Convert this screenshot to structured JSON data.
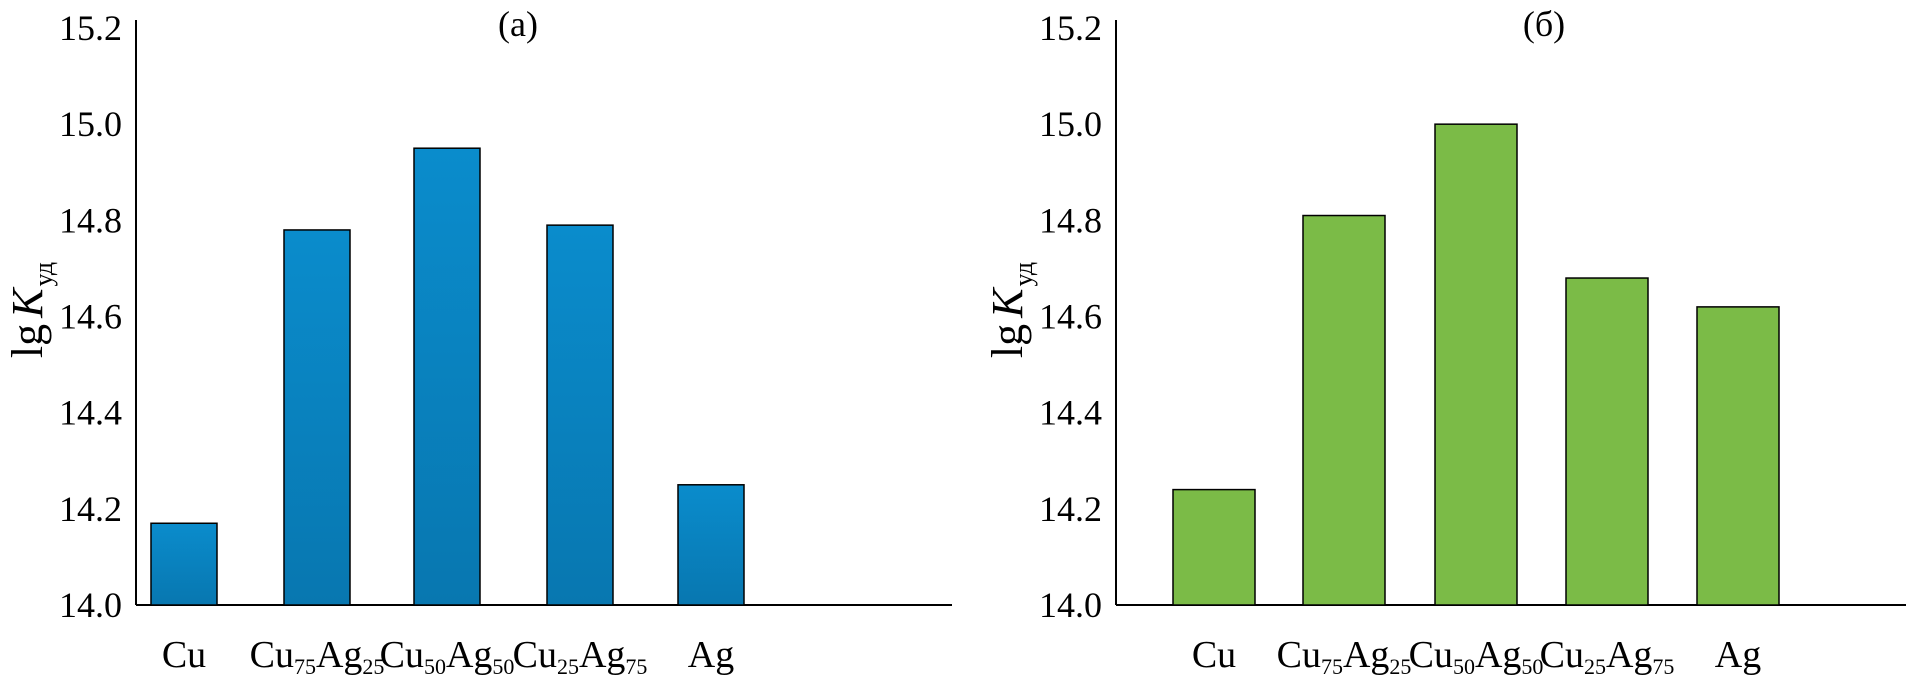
{
  "chart_data": [
    {
      "type": "bar",
      "title": "(а)",
      "ylabel": "lg K уд",
      "ylabel_parts": {
        "main": "lg",
        "italic": "K",
        "sub": "уд"
      },
      "ylim": [
        14.0,
        15.2
      ],
      "yticks": [
        "14.0",
        "14.2",
        "14.4",
        "14.6",
        "14.8",
        "15.0",
        "15.2"
      ],
      "grid": false,
      "categories": [
        "Cu",
        "Cu75Ag25",
        "Cu50Ag50",
        "Cu25Ag75",
        "Ag"
      ],
      "category_parts": [
        [
          {
            "t": "Cu"
          }
        ],
        [
          {
            "t": "Cu"
          },
          {
            "s": "75"
          },
          {
            "t": "Ag"
          },
          {
            "s": "25"
          }
        ],
        [
          {
            "t": "Cu"
          },
          {
            "s": "50"
          },
          {
            "t": "Ag"
          },
          {
            "s": "50"
          }
        ],
        [
          {
            "t": "Cu"
          },
          {
            "s": "25"
          },
          {
            "t": "Ag"
          },
          {
            "s": "75"
          }
        ],
        [
          {
            "t": "Ag"
          }
        ]
      ],
      "values": [
        14.17,
        14.78,
        14.95,
        14.79,
        14.25
      ],
      "color": "#0a87c6",
      "color_dark": "#0878b2"
    },
    {
      "type": "bar",
      "title": "(б)",
      "ylabel": "lg K уд",
      "ylabel_parts": {
        "main": "lg",
        "italic": "K",
        "sub": "уд"
      },
      "ylim": [
        14.0,
        15.2
      ],
      "yticks": [
        "14.0",
        "14.2",
        "14.4",
        "14.6",
        "14.8",
        "15.0",
        "15.2"
      ],
      "grid": false,
      "categories": [
        "Cu",
        "Cu75Ag25",
        "Cu50Ag50",
        "Cu25Ag75",
        "Ag"
      ],
      "category_parts": [
        [
          {
            "t": "Cu"
          }
        ],
        [
          {
            "t": "Cu"
          },
          {
            "s": "75"
          },
          {
            "t": "Ag"
          },
          {
            "s": "25"
          }
        ],
        [
          {
            "t": "Cu"
          },
          {
            "s": "50"
          },
          {
            "t": "Ag"
          },
          {
            "s": "50"
          }
        ],
        [
          {
            "t": "Cu"
          },
          {
            "s": "25"
          },
          {
            "t": "Ag"
          },
          {
            "s": "75"
          }
        ],
        [
          {
            "t": "Ag"
          }
        ]
      ],
      "values": [
        14.24,
        14.81,
        15.0,
        14.68,
        14.62
      ],
      "color": "#7bbb47",
      "color_dark": "#7bbb47"
    }
  ]
}
